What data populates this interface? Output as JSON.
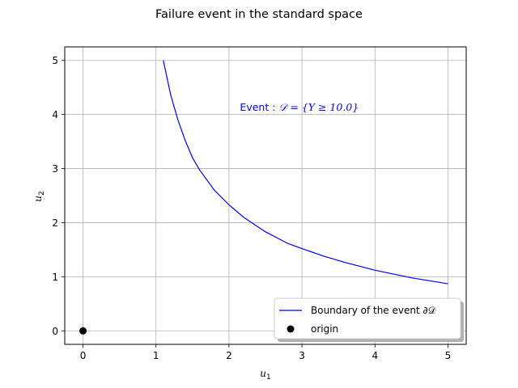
{
  "chart_data": {
    "type": "line",
    "title": "Failure event in the standard space",
    "xlabel": {
      "base": "u",
      "sub": "1"
    },
    "ylabel": {
      "base": "u",
      "sub": "2"
    },
    "xlim": [
      -0.25,
      5.25
    ],
    "ylim": [
      -0.25,
      5.25
    ],
    "xticks": [
      0,
      1,
      2,
      3,
      4,
      5
    ],
    "yticks": [
      0,
      1,
      2,
      3,
      4,
      5
    ],
    "grid": true,
    "legend_position": "lower-right",
    "annotation": {
      "text_prefix": "Event : ",
      "math": "𝒟 = {Y ≥ 10.0}",
      "x": 2.15,
      "y": 4.07,
      "color": "#0000ff"
    },
    "series": [
      {
        "name": "Boundary of the event ∂𝒟",
        "kind": "line",
        "color": "#0000ff",
        "x": [
          1.1,
          1.2,
          1.3,
          1.4,
          1.5,
          1.6,
          1.8,
          2.0,
          2.2,
          2.5,
          2.8,
          3.0,
          3.3,
          3.6,
          4.0,
          4.5,
          5.0
        ],
        "y": [
          5.0,
          4.37,
          3.9,
          3.52,
          3.2,
          2.97,
          2.6,
          2.33,
          2.1,
          1.83,
          1.62,
          1.52,
          1.38,
          1.26,
          1.12,
          0.98,
          0.87
        ]
      },
      {
        "name": "origin",
        "kind": "scatter",
        "color": "#000000",
        "x": [
          0
        ],
        "y": [
          0
        ]
      }
    ]
  }
}
